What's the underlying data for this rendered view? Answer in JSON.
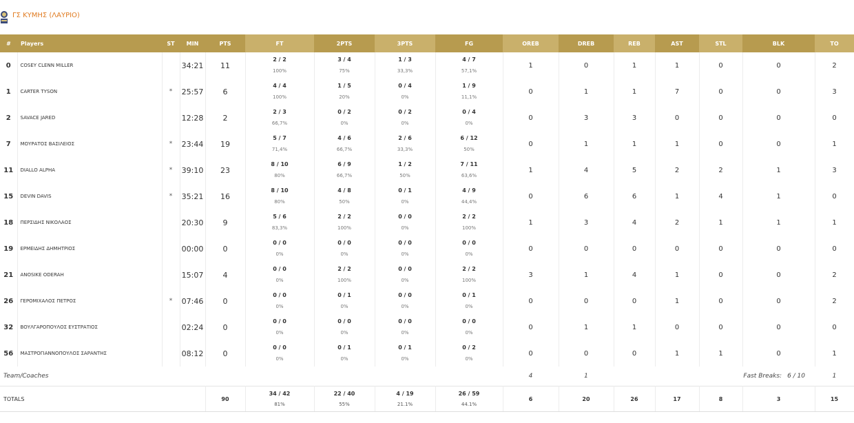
{
  "team": {
    "name": "ΓΣ ΚΥΜΗΣ (ΛΑΥΡΙΟ)",
    "logo_icon": "team-crest-icon"
  },
  "colors": {
    "header_light": "#c9b06b",
    "header_dark": "#b79b4f",
    "accent": "#e07a1f"
  },
  "columns": [
    "#",
    "Players",
    "ST",
    "MIN",
    "PTS",
    "FT",
    "2PTS",
    "3PTS",
    "FG",
    "OREB",
    "DREB",
    "REB",
    "AST",
    "STL",
    "BLK",
    "TO"
  ],
  "players": [
    {
      "num": "0",
      "name": "COSEY CLENN MILLER",
      "st": "",
      "min": "34:21",
      "pts": "11",
      "ft": "2 / 2",
      "ft_pct": "100%",
      "p2": "3 / 4",
      "p2_pct": "75%",
      "p3": "1 / 3",
      "p3_pct": "33,3%",
      "fg": "4 / 7",
      "fg_pct": "57,1%",
      "oreb": "1",
      "dreb": "0",
      "reb": "1",
      "ast": "1",
      "stl": "0",
      "blk": "0",
      "to": "2"
    },
    {
      "num": "1",
      "name": "CARTER TYSON",
      "st": "*",
      "min": "25:57",
      "pts": "6",
      "ft": "4 / 4",
      "ft_pct": "100%",
      "p2": "1 / 5",
      "p2_pct": "20%",
      "p3": "0 / 4",
      "p3_pct": "0%",
      "fg": "1 / 9",
      "fg_pct": "11,1%",
      "oreb": "0",
      "dreb": "1",
      "reb": "1",
      "ast": "7",
      "stl": "0",
      "blk": "0",
      "to": "3"
    },
    {
      "num": "2",
      "name": "SAVACE JARED",
      "st": "",
      "min": "12:28",
      "pts": "2",
      "ft": "2 / 3",
      "ft_pct": "66,7%",
      "p2": "0 / 2",
      "p2_pct": "0%",
      "p3": "0 / 2",
      "p3_pct": "0%",
      "fg": "0 / 4",
      "fg_pct": "0%",
      "oreb": "0",
      "dreb": "3",
      "reb": "3",
      "ast": "0",
      "stl": "0",
      "blk": "0",
      "to": "0"
    },
    {
      "num": "7",
      "name": "ΜΟΥΡΑΤΟΣ ΒΑΣΙΛΕΙΟΣ",
      "st": "*",
      "min": "23:44",
      "pts": "19",
      "ft": "5 / 7",
      "ft_pct": "71,4%",
      "p2": "4 / 6",
      "p2_pct": "66,7%",
      "p3": "2 / 6",
      "p3_pct": "33,3%",
      "fg": "6 / 12",
      "fg_pct": "50%",
      "oreb": "0",
      "dreb": "1",
      "reb": "1",
      "ast": "1",
      "stl": "0",
      "blk": "0",
      "to": "1"
    },
    {
      "num": "11",
      "name": "DIALLO ALPHA",
      "st": "*",
      "min": "39:10",
      "pts": "23",
      "ft": "8 / 10",
      "ft_pct": "80%",
      "p2": "6 / 9",
      "p2_pct": "66,7%",
      "p3": "1 / 2",
      "p3_pct": "50%",
      "fg": "7 / 11",
      "fg_pct": "63,6%",
      "oreb": "1",
      "dreb": "4",
      "reb": "5",
      "ast": "2",
      "stl": "2",
      "blk": "1",
      "to": "3"
    },
    {
      "num": "15",
      "name": "DEVIN DAVIS",
      "st": "*",
      "min": "35:21",
      "pts": "16",
      "ft": "8 / 10",
      "ft_pct": "80%",
      "p2": "4 / 8",
      "p2_pct": "50%",
      "p3": "0 / 1",
      "p3_pct": "0%",
      "fg": "4 / 9",
      "fg_pct": "44,4%",
      "oreb": "0",
      "dreb": "6",
      "reb": "6",
      "ast": "1",
      "stl": "4",
      "blk": "1",
      "to": "0"
    },
    {
      "num": "18",
      "name": "ΠΕΡΣΙΔΗΣ ΝΙΚΟΛΑΟΣ",
      "st": "",
      "min": "20:30",
      "pts": "9",
      "ft": "5 / 6",
      "ft_pct": "83,3%",
      "p2": "2 / 2",
      "p2_pct": "100%",
      "p3": "0 / 0",
      "p3_pct": "0%",
      "fg": "2 / 2",
      "fg_pct": "100%",
      "oreb": "1",
      "dreb": "3",
      "reb": "4",
      "ast": "2",
      "stl": "1",
      "blk": "1",
      "to": "1"
    },
    {
      "num": "19",
      "name": "ΕΡΜΕΙΔΗΣ ΔΗΜΗΤΡΙΟΣ",
      "st": "",
      "min": "00:00",
      "pts": "0",
      "ft": "0 / 0",
      "ft_pct": "0%",
      "p2": "0 / 0",
      "p2_pct": "0%",
      "p3": "0 / 0",
      "p3_pct": "0%",
      "fg": "0 / 0",
      "fg_pct": "0%",
      "oreb": "0",
      "dreb": "0",
      "reb": "0",
      "ast": "0",
      "stl": "0",
      "blk": "0",
      "to": "0"
    },
    {
      "num": "21",
      "name": "ANOSIKE ODERAH",
      "st": "",
      "min": "15:07",
      "pts": "4",
      "ft": "0 / 0",
      "ft_pct": "0%",
      "p2": "2 / 2",
      "p2_pct": "100%",
      "p3": "0 / 0",
      "p3_pct": "0%",
      "fg": "2 / 2",
      "fg_pct": "100%",
      "oreb": "3",
      "dreb": "1",
      "reb": "4",
      "ast": "1",
      "stl": "0",
      "blk": "0",
      "to": "2"
    },
    {
      "num": "26",
      "name": "ΓΕΡΟΜΙΧΑΛΟΣ ΠΕΤΡΟΣ",
      "st": "*",
      "min": "07:46",
      "pts": "0",
      "ft": "0 / 0",
      "ft_pct": "0%",
      "p2": "0 / 1",
      "p2_pct": "0%",
      "p3": "0 / 0",
      "p3_pct": "0%",
      "fg": "0 / 1",
      "fg_pct": "0%",
      "oreb": "0",
      "dreb": "0",
      "reb": "0",
      "ast": "1",
      "stl": "0",
      "blk": "0",
      "to": "2"
    },
    {
      "num": "32",
      "name": "ΒΟΥΛΓΑΡΟΠΟΥΛΟΣ ΕΥΣΤΡΑΤΙΟΣ",
      "st": "",
      "min": "02:24",
      "pts": "0",
      "ft": "0 / 0",
      "ft_pct": "0%",
      "p2": "0 / 0",
      "p2_pct": "0%",
      "p3": "0 / 0",
      "p3_pct": "0%",
      "fg": "0 / 0",
      "fg_pct": "0%",
      "oreb": "0",
      "dreb": "1",
      "reb": "1",
      "ast": "0",
      "stl": "0",
      "blk": "0",
      "to": "0"
    },
    {
      "num": "56",
      "name": "ΜΑΣΤΡΟΓΙΑΝΝΟΠΟΥΛΟΣ ΣΑΡΑΝΤΗΣ",
      "st": "",
      "min": "08:12",
      "pts": "0",
      "ft": "0 / 0",
      "ft_pct": "0%",
      "p2": "0 / 1",
      "p2_pct": "0%",
      "p3": "0 / 1",
      "p3_pct": "0%",
      "fg": "0 / 2",
      "fg_pct": "0%",
      "oreb": "0",
      "dreb": "0",
      "reb": "0",
      "ast": "1",
      "stl": "1",
      "blk": "0",
      "to": "1"
    }
  ],
  "team_row": {
    "label": "Team/Coaches",
    "oreb": "4",
    "dreb": "1",
    "fast_breaks_label": "Fast Breaks:",
    "fast_breaks_value": "6 / 10",
    "to": "1"
  },
  "totals": {
    "label": "TOTALS",
    "pts": "90",
    "ft": "34 / 42",
    "ft_pct": "81%",
    "p2": "22 / 40",
    "p2_pct": "55%",
    "p3": "4 / 19",
    "p3_pct": "21.1%",
    "fg": "26 / 59",
    "fg_pct": "44.1%",
    "oreb": "6",
    "dreb": "20",
    "reb": "26",
    "ast": "17",
    "stl": "8",
    "blk": "3",
    "to": "15"
  }
}
